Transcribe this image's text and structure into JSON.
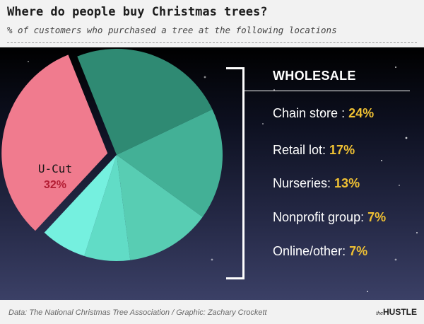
{
  "title": "Where do people buy Christmas trees?",
  "subtitle": "% of customers who purchased a tree at the following locations",
  "source": "Data: The National Christmas Tree Association / Graphic: Zachary Crockett",
  "logo": {
    "small": "the",
    "main": "HUSTLE"
  },
  "group_label": "WHOLESALE",
  "chart_data": {
    "type": "pie",
    "title": "Where do people buy Christmas trees?",
    "slices": [
      {
        "label": "U-Cut",
        "value": 32,
        "display": "32%",
        "color": "#f07b8e",
        "exploded": true
      },
      {
        "label": "Chain store",
        "value": 24,
        "display": "24%",
        "color": "#2f8a73",
        "group": "WHOLESALE"
      },
      {
        "label": "Retail lot",
        "value": 17,
        "display": "17%",
        "color": "#43b096",
        "group": "WHOLESALE"
      },
      {
        "label": "Nurseries",
        "value": 13,
        "display": "13%",
        "color": "#58cdb3",
        "group": "WHOLESALE"
      },
      {
        "label": "Nonprofit group",
        "value": 7,
        "display": "7%",
        "color": "#61dcc6",
        "group": "WHOLESALE"
      },
      {
        "label": "Online/other",
        "value": 7,
        "display": "7%",
        "color": "#75f0df",
        "group": "WHOLESALE"
      }
    ]
  }
}
